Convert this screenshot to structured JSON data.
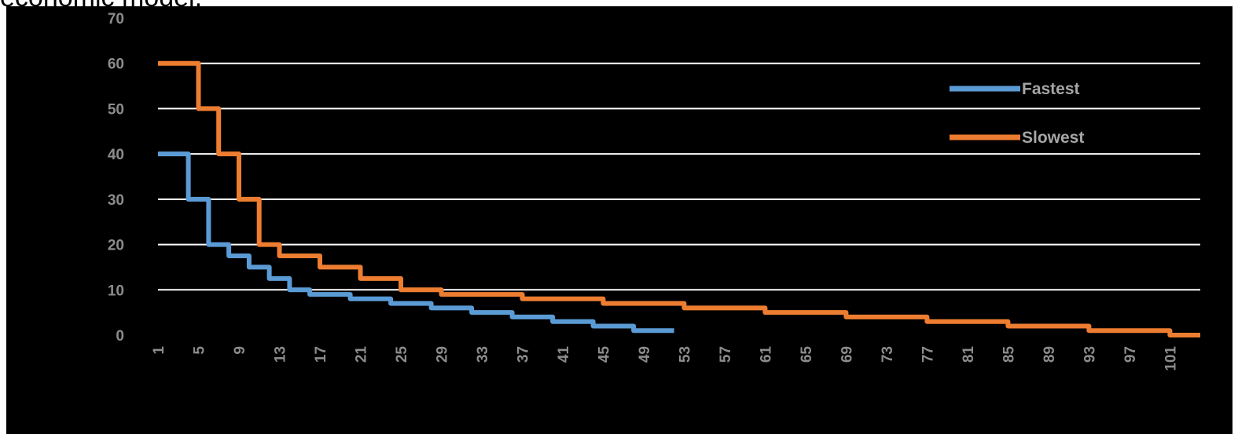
{
  "caption": "economic model.",
  "chart_data": {
    "type": "line",
    "title": "",
    "xlabel": "",
    "ylabel": "",
    "ylim": [
      0,
      70
    ],
    "yticks": [
      0,
      10,
      20,
      30,
      40,
      50,
      60,
      70
    ],
    "xlim": [
      1,
      104
    ],
    "xticks": [
      1,
      5,
      9,
      13,
      17,
      21,
      25,
      29,
      33,
      37,
      41,
      45,
      49,
      53,
      57,
      61,
      65,
      69,
      73,
      77,
      81,
      85,
      89,
      93,
      97,
      101
    ],
    "grid": true,
    "legend_position": "top-right",
    "colors": {
      "background": "#000000",
      "grid": "#ffffff",
      "tick_text": "#8c8c8c"
    },
    "series": [
      {
        "name": "Fastest",
        "color": "#5b9bd5",
        "step": true,
        "points": [
          [
            1,
            40
          ],
          [
            4,
            40
          ],
          [
            4,
            30
          ],
          [
            6,
            30
          ],
          [
            6,
            20
          ],
          [
            8,
            20
          ],
          [
            8,
            17.5
          ],
          [
            10,
            17.5
          ],
          [
            10,
            15
          ],
          [
            12,
            15
          ],
          [
            12,
            12.5
          ],
          [
            14,
            12.5
          ],
          [
            14,
            10
          ],
          [
            16,
            10
          ],
          [
            16,
            9
          ],
          [
            20,
            9
          ],
          [
            20,
            8
          ],
          [
            24,
            8
          ],
          [
            24,
            7
          ],
          [
            28,
            7
          ],
          [
            28,
            6
          ],
          [
            32,
            6
          ],
          [
            32,
            5
          ],
          [
            36,
            5
          ],
          [
            36,
            4
          ],
          [
            40,
            4
          ],
          [
            40,
            3
          ],
          [
            44,
            3
          ],
          [
            44,
            2
          ],
          [
            48,
            2
          ],
          [
            48,
            1
          ],
          [
            52,
            1
          ]
        ]
      },
      {
        "name": "Slowest",
        "color": "#ed7d31",
        "step": true,
        "points": [
          [
            1,
            60
          ],
          [
            5,
            60
          ],
          [
            5,
            50
          ],
          [
            7,
            50
          ],
          [
            7,
            40
          ],
          [
            9,
            40
          ],
          [
            9,
            30
          ],
          [
            11,
            30
          ],
          [
            11,
            20
          ],
          [
            13,
            20
          ],
          [
            13,
            17.5
          ],
          [
            17,
            17.5
          ],
          [
            17,
            15
          ],
          [
            21,
            15
          ],
          [
            21,
            12.5
          ],
          [
            25,
            12.5
          ],
          [
            25,
            10
          ],
          [
            29,
            10
          ],
          [
            29,
            9
          ],
          [
            37,
            9
          ],
          [
            37,
            8
          ],
          [
            45,
            8
          ],
          [
            45,
            7
          ],
          [
            53,
            7
          ],
          [
            53,
            6
          ],
          [
            61,
            6
          ],
          [
            61,
            5
          ],
          [
            69,
            5
          ],
          [
            69,
            4
          ],
          [
            77,
            4
          ],
          [
            77,
            3
          ],
          [
            85,
            3
          ],
          [
            85,
            2
          ],
          [
            93,
            2
          ],
          [
            93,
            1
          ],
          [
            101,
            1
          ],
          [
            101,
            0
          ],
          [
            104,
            0
          ]
        ]
      }
    ]
  }
}
